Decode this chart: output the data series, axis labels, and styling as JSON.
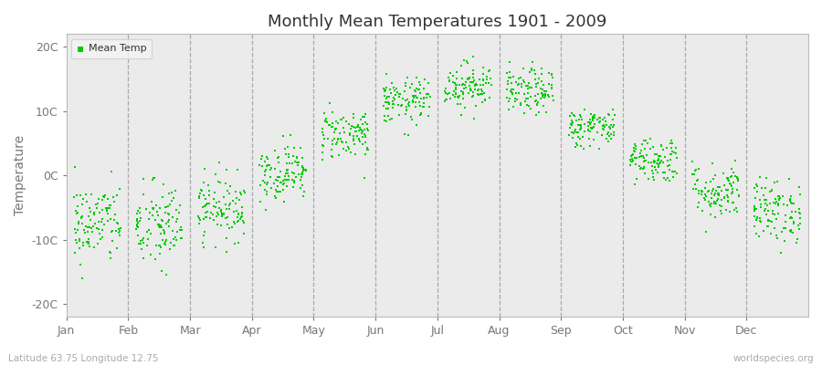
{
  "title": "Monthly Mean Temperatures 1901 - 2009",
  "ylabel": "Temperature",
  "bottom_left_label": "Latitude 63.75 Longitude 12.75",
  "bottom_right_label": "worldspecies.org",
  "legend_label": "Mean Temp",
  "marker_color": "#00cc00",
  "plot_bg_color": "#ebebeb",
  "fig_bg_color": "#ffffff",
  "yticks": [
    -20,
    -10,
    0,
    10,
    20
  ],
  "ytick_labels": [
    "-20C",
    "-10C",
    "0C",
    "10C",
    "20C"
  ],
  "ylim": [
    -22,
    22
  ],
  "months": [
    "Jan",
    "Feb",
    "Mar",
    "Apr",
    "May",
    "Jun",
    "Jul",
    "Aug",
    "Sep",
    "Oct",
    "Nov",
    "Dec"
  ],
  "num_years": 109,
  "monthly_means": [
    -7.5,
    -8.0,
    -5.0,
    0.5,
    6.5,
    11.5,
    14.0,
    13.0,
    7.5,
    2.5,
    -2.5,
    -5.5
  ],
  "monthly_stds": [
    3.2,
    3.5,
    2.5,
    2.2,
    2.0,
    1.8,
    1.8,
    1.8,
    1.5,
    1.8,
    2.2,
    2.5
  ],
  "seed": 42,
  "dashed_line_color": "#999999",
  "spine_color": "#bbbbbb",
  "tick_color": "#777777",
  "label_color": "#aaaaaa"
}
